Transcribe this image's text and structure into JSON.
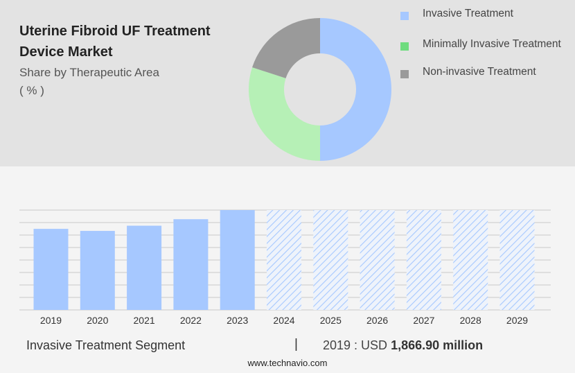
{
  "header": {
    "title": "Uterine Fibroid UF Treatment Device Market",
    "subtitle": "Share by Therapeutic Area",
    "unit": "( % )"
  },
  "footer": {
    "segment": "Invasive Treatment Segment",
    "separator": "|",
    "value_prefix": "2019 : USD",
    "value_bold": "1,866.90 million",
    "website": "www.technavio.com"
  },
  "chart_data": [
    {
      "type": "pie",
      "style": "donut",
      "categories": [
        "Invasive Treatment",
        "Minimally Invasive Treatment",
        "Non-invasive Treatment"
      ],
      "values": [
        50,
        30,
        20
      ],
      "colors": [
        "#a6c8ff",
        "#b6f0b6",
        "#9a9a9a"
      ],
      "legend_colors": [
        "#a6c8ff",
        "#6fdc7f",
        "#9a9a9a"
      ],
      "legend": "top-right"
    },
    {
      "type": "bar",
      "categories": [
        "2019",
        "2020",
        "2021",
        "2022",
        "2023",
        "2024",
        "2025",
        "2026",
        "2027",
        "2028",
        "2029"
      ],
      "values": [
        1866.9,
        1820,
        1940,
        2090,
        2300,
        2300,
        2300,
        2300,
        2300,
        2300,
        2300
      ],
      "forecast_from": "2024",
      "ylim": [
        0,
        2300
      ],
      "grid": true,
      "bar_color": "#a6c8ff"
    }
  ]
}
